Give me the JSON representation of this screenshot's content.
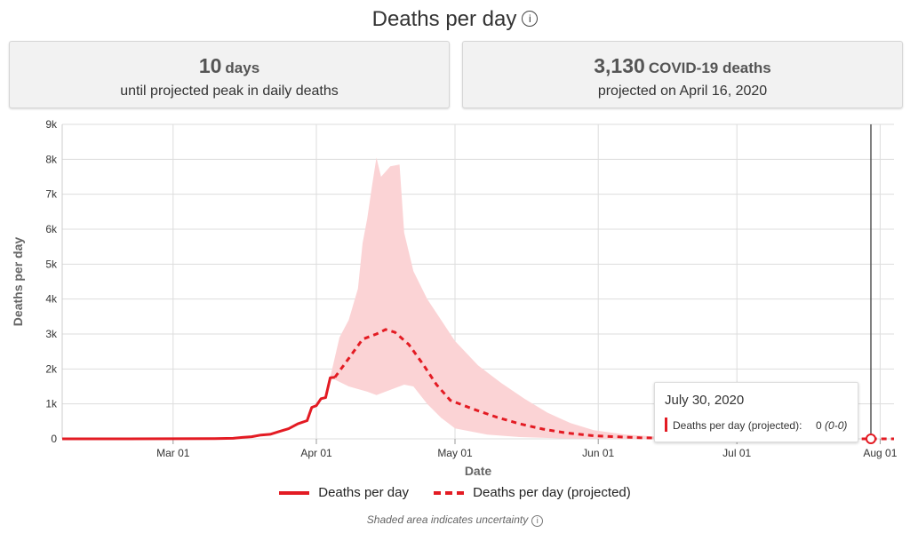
{
  "header": {
    "title": "Deaths per day",
    "info_icon": "info-circle-icon"
  },
  "cards": {
    "left": {
      "value": "10",
      "unit": "days",
      "caption": "until projected peak in daily deaths"
    },
    "right": {
      "value": "3,130",
      "unit": "COVID-19 deaths",
      "caption": "projected on April 16, 2020"
    }
  },
  "tooltip": {
    "date": "July 30, 2020",
    "label": "Deaths per day (projected):",
    "value": "0",
    "range": "(0-0)"
  },
  "legend": {
    "actual": "Deaths per day",
    "projected": "Deaths per day (projected)"
  },
  "note": "Shaded area indicates uncertainty",
  "colors": {
    "line": "#e31b23",
    "band": "#fbd3d5",
    "grid": "#dddddd",
    "cursor": "#555555"
  },
  "chart_data": {
    "type": "line",
    "xlabel": "Date",
    "ylabel": "Deaths per day",
    "x_ticks": [
      "Mar 01",
      "Apr 01",
      "May 01",
      "Jun 01",
      "Jul 01",
      "Aug 01"
    ],
    "x_tick_dates": [
      "2020-03-01",
      "2020-04-01",
      "2020-05-01",
      "2020-06-01",
      "2020-07-01",
      "2020-08-01"
    ],
    "xlim": [
      "2020-02-06",
      "2020-08-04"
    ],
    "ylim": [
      0,
      9000
    ],
    "y_ticks": [
      0,
      1000,
      2000,
      3000,
      4000,
      5000,
      6000,
      7000,
      8000,
      9000
    ],
    "y_tick_labels": [
      "0",
      "1k",
      "2k",
      "3k",
      "4k",
      "5k",
      "6k",
      "7k",
      "8k",
      "9k"
    ],
    "grid": true,
    "legend_position": "bottom",
    "series": [
      {
        "name": "Deaths per day",
        "style": "solid",
        "points": [
          [
            "2020-02-06",
            0
          ],
          [
            "2020-02-20",
            0
          ],
          [
            "2020-03-01",
            2
          ],
          [
            "2020-03-10",
            5
          ],
          [
            "2020-03-14",
            15
          ],
          [
            "2020-03-16",
            40
          ],
          [
            "2020-03-18",
            60
          ],
          [
            "2020-03-20",
            110
          ],
          [
            "2020-03-22",
            130
          ],
          [
            "2020-03-24",
            210
          ],
          [
            "2020-03-26",
            290
          ],
          [
            "2020-03-28",
            430
          ],
          [
            "2020-03-30",
            520
          ],
          [
            "2020-03-31",
            900
          ],
          [
            "2020-04-01",
            950
          ],
          [
            "2020-04-02",
            1150
          ],
          [
            "2020-04-03",
            1180
          ],
          [
            "2020-04-04",
            1750
          ],
          [
            "2020-04-05",
            1760
          ]
        ]
      },
      {
        "name": "Deaths per day (projected)",
        "style": "dashed",
        "points": [
          [
            "2020-04-05",
            1760
          ],
          [
            "2020-04-08",
            2300
          ],
          [
            "2020-04-11",
            2850
          ],
          [
            "2020-04-14",
            3000
          ],
          [
            "2020-04-16",
            3130
          ],
          [
            "2020-04-18",
            3050
          ],
          [
            "2020-04-21",
            2700
          ],
          [
            "2020-04-24",
            2150
          ],
          [
            "2020-04-27",
            1550
          ],
          [
            "2020-04-30",
            1100
          ],
          [
            "2020-05-05",
            850
          ],
          [
            "2020-05-10",
            620
          ],
          [
            "2020-05-15",
            430
          ],
          [
            "2020-05-20",
            280
          ],
          [
            "2020-05-25",
            170
          ],
          [
            "2020-05-31",
            90
          ],
          [
            "2020-06-10",
            30
          ],
          [
            "2020-06-20",
            10
          ],
          [
            "2020-07-01",
            0
          ],
          [
            "2020-08-04",
            0
          ]
        ],
        "upper": [
          [
            "2020-04-04",
            1760
          ],
          [
            "2020-04-06",
            2900
          ],
          [
            "2020-04-08",
            3400
          ],
          [
            "2020-04-10",
            4300
          ],
          [
            "2020-04-11",
            5600
          ],
          [
            "2020-04-12",
            6300
          ],
          [
            "2020-04-13",
            7200
          ],
          [
            "2020-04-14",
            8050
          ],
          [
            "2020-04-15",
            7500
          ],
          [
            "2020-04-17",
            7800
          ],
          [
            "2020-04-19",
            7850
          ],
          [
            "2020-04-20",
            5900
          ],
          [
            "2020-04-22",
            4800
          ],
          [
            "2020-04-25",
            4000
          ],
          [
            "2020-04-28",
            3400
          ],
          [
            "2020-05-01",
            2800
          ],
          [
            "2020-05-06",
            2100
          ],
          [
            "2020-05-11",
            1600
          ],
          [
            "2020-05-16",
            1150
          ],
          [
            "2020-05-21",
            750
          ],
          [
            "2020-05-26",
            450
          ],
          [
            "2020-05-31",
            250
          ],
          [
            "2020-06-07",
            120
          ],
          [
            "2020-06-15",
            50
          ],
          [
            "2020-06-25",
            15
          ],
          [
            "2020-07-05",
            0
          ],
          [
            "2020-08-04",
            0
          ]
        ],
        "lower": [
          [
            "2020-04-04",
            1760
          ],
          [
            "2020-04-08",
            1500
          ],
          [
            "2020-04-12",
            1350
          ],
          [
            "2020-04-14",
            1250
          ],
          [
            "2020-04-17",
            1400
          ],
          [
            "2020-04-20",
            1550
          ],
          [
            "2020-04-22",
            1500
          ],
          [
            "2020-04-25",
            1000
          ],
          [
            "2020-04-28",
            600
          ],
          [
            "2020-05-01",
            300
          ],
          [
            "2020-05-08",
            120
          ],
          [
            "2020-05-15",
            50
          ],
          [
            "2020-05-25",
            10
          ],
          [
            "2020-06-05",
            0
          ],
          [
            "2020-08-04",
            0
          ]
        ]
      }
    ],
    "highlight": {
      "date": "2020-07-30",
      "value": 0
    }
  }
}
